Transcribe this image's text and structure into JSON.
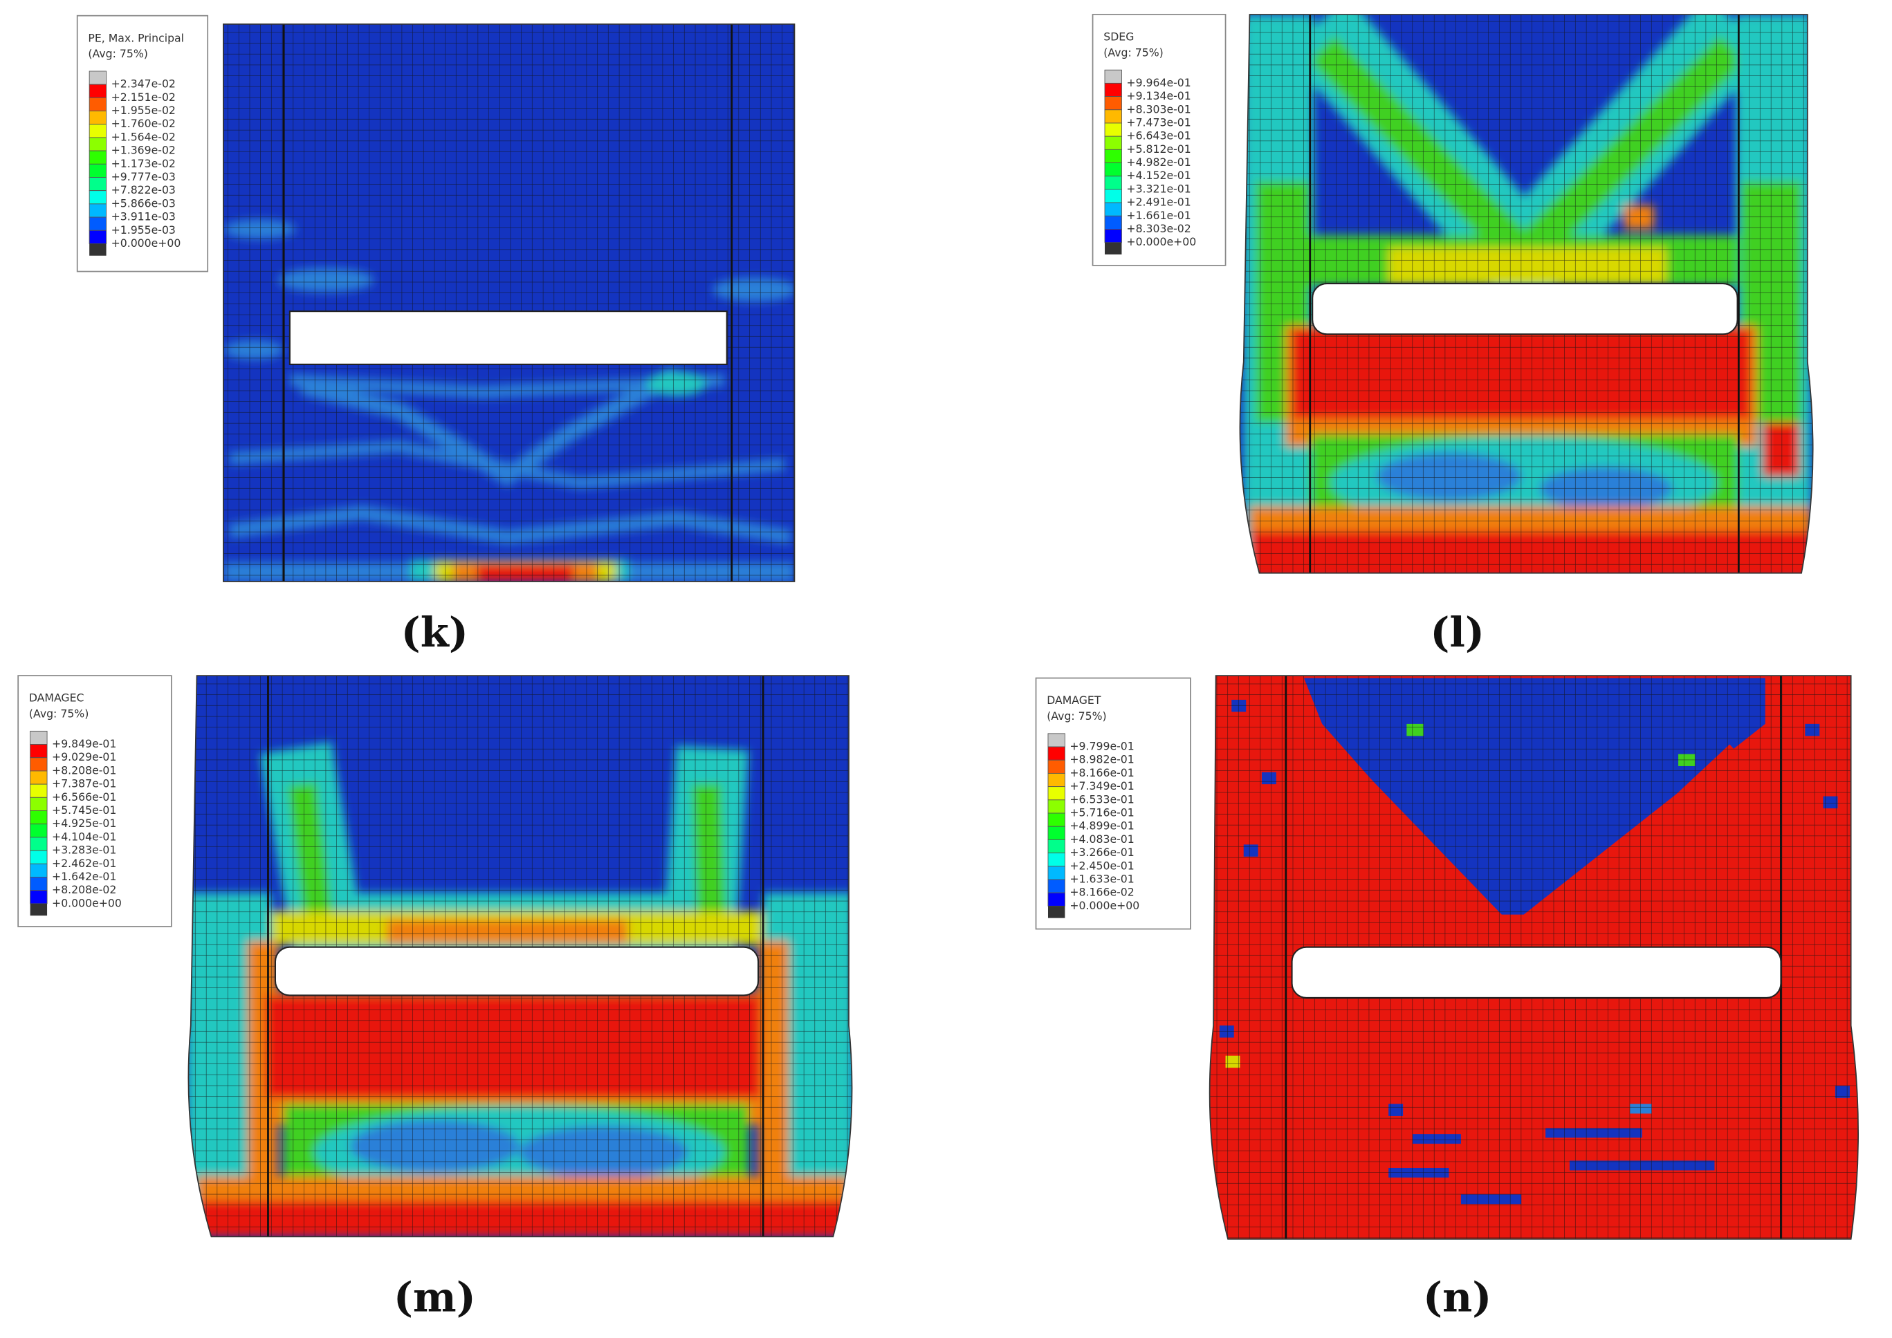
{
  "panels": [
    {
      "label": "(k)",
      "legend": {
        "title": "PE, Max. Principal",
        "subtitle": "(Avg: 75%)",
        "labels": [
          "+2.347e-02",
          "+2.151e-02",
          "+1.955e-02",
          "+1.760e-02",
          "+1.564e-02",
          "+1.369e-02",
          "+1.173e-02",
          "+9.777e-03",
          "+7.822e-03",
          "+5.866e-03",
          "+3.911e-03",
          "+1.955e-03",
          "+0.000e+00"
        ]
      }
    },
    {
      "label": "(l)",
      "legend": {
        "title": "SDEG",
        "subtitle": "(Avg: 75%)",
        "labels": [
          "+9.964e-01",
          "+9.134e-01",
          "+8.303e-01",
          "+7.473e-01",
          "+6.643e-01",
          "+5.812e-01",
          "+4.982e-01",
          "+4.152e-01",
          "+3.321e-01",
          "+2.491e-01",
          "+1.661e-01",
          "+8.303e-02",
          "+0.000e+00"
        ]
      }
    },
    {
      "label": "(m)",
      "legend": {
        "title": "DAMAGEC",
        "subtitle": "(Avg: 75%)",
        "labels": [
          "+9.849e-01",
          "+9.029e-01",
          "+8.208e-01",
          "+7.387e-01",
          "+6.566e-01",
          "+5.745e-01",
          "+4.925e-01",
          "+4.104e-01",
          "+3.283e-01",
          "+2.462e-01",
          "+1.642e-01",
          "+8.208e-02",
          "+0.000e+00"
        ]
      }
    },
    {
      "label": "(n)",
      "legend": {
        "title": "DAMAGET",
        "subtitle": "(Avg: 75%)",
        "labels": [
          "+9.799e-01",
          "+8.982e-01",
          "+8.166e-01",
          "+7.349e-01",
          "+6.533e-01",
          "+5.716e-01",
          "+4.899e-01",
          "+4.083e-01",
          "+3.266e-01",
          "+2.450e-01",
          "+1.633e-01",
          "+8.166e-02",
          "+0.000e+00"
        ]
      }
    }
  ]
}
